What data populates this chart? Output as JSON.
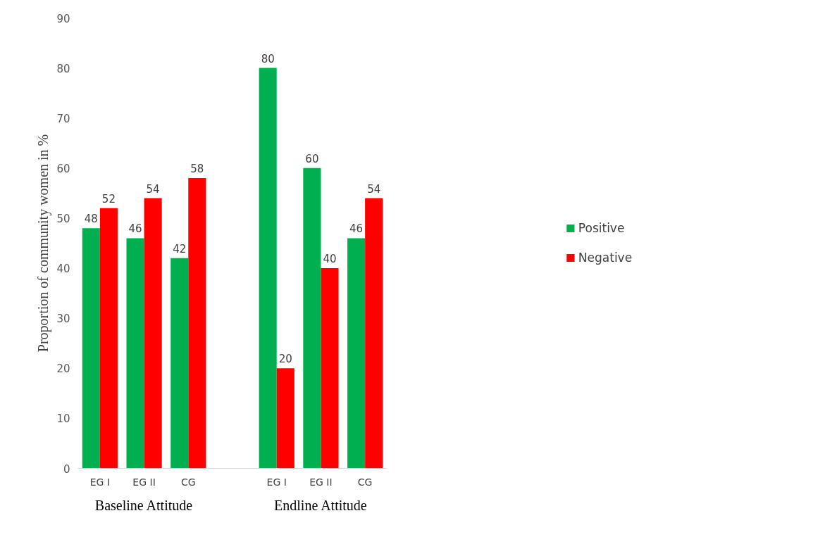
{
  "chart_data": {
    "type": "bar",
    "ylabel": "Proportion of community women in %",
    "categories": [
      "EG I",
      "EG II",
      "CG",
      null,
      "EG I",
      "EG II",
      "CG"
    ],
    "series": [
      {
        "name": "Positive",
        "color": "#00b050",
        "values": [
          48,
          46,
          42,
          null,
          80,
          60,
          46
        ]
      },
      {
        "name": "Negative",
        "color": "#ff0000",
        "values": [
          52,
          54,
          58,
          null,
          20,
          40,
          54
        ]
      }
    ],
    "annotations": [
      "Baseline Attitude",
      "Endline Attitude"
    ],
    "ylim": [
      0,
      90
    ],
    "yticks": [
      0,
      10,
      20,
      30,
      40,
      50,
      60,
      70,
      80,
      90
    ],
    "data_labels": true,
    "legend": "right",
    "grid": false
  }
}
